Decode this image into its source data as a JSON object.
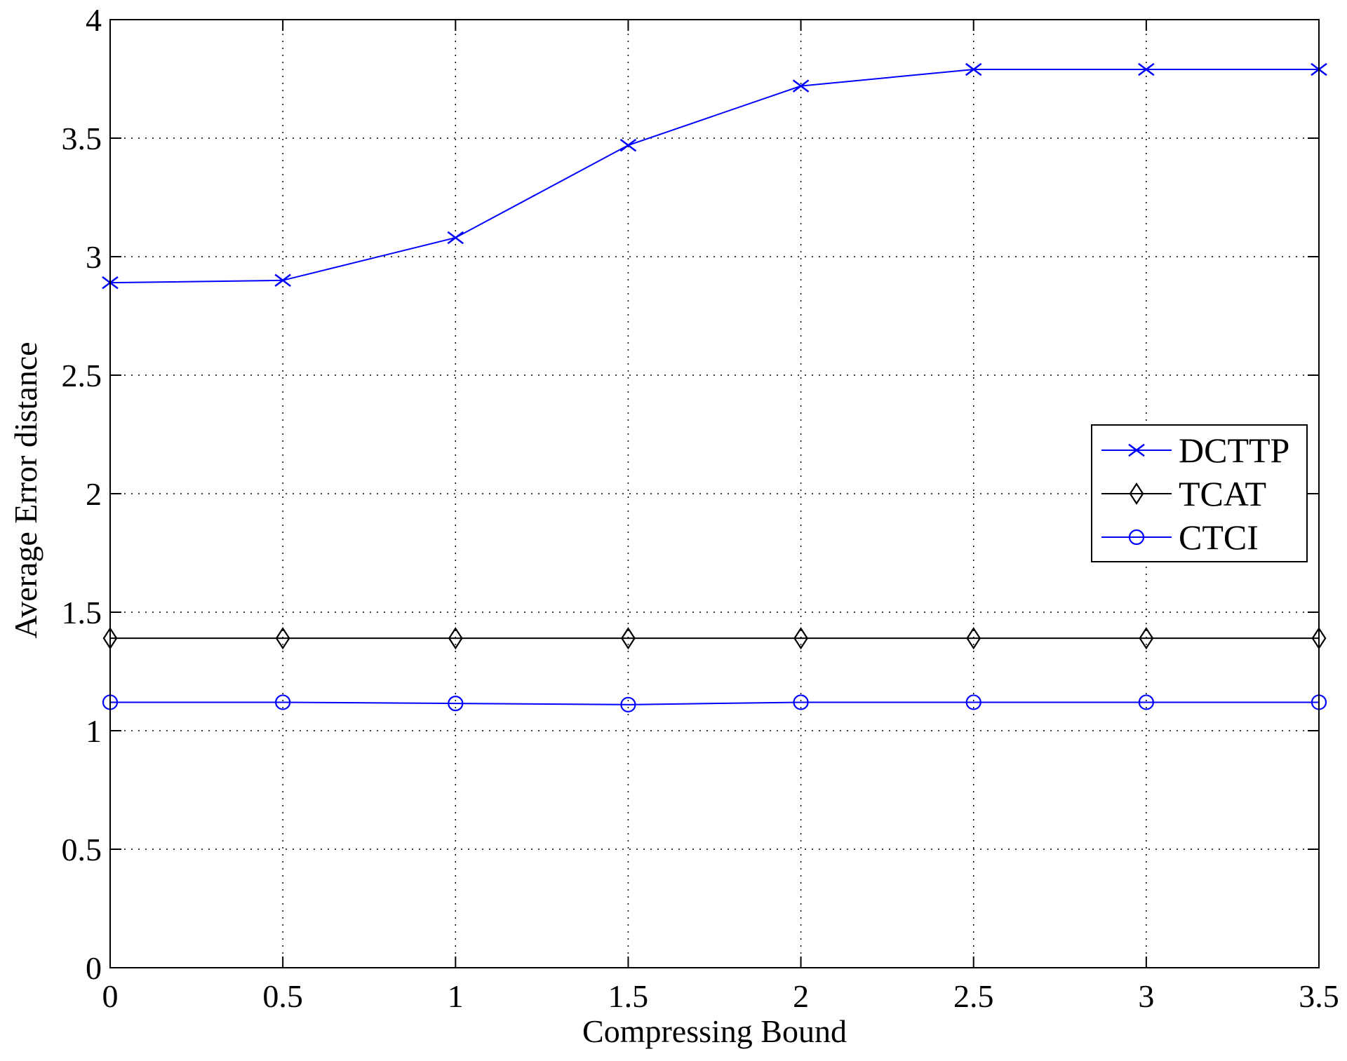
{
  "chart_data": {
    "type": "line",
    "xlabel": "Compressing Bound",
    "ylabel": "Average Error distance",
    "xlim": [
      0,
      3.5
    ],
    "ylim": [
      0,
      4
    ],
    "x": [
      0,
      0.5,
      1,
      1.5,
      2,
      2.5,
      3,
      3.5
    ],
    "xticks": [
      "0",
      "0.5",
      "1",
      "1.5",
      "2",
      "2.5",
      "3",
      "3.5"
    ],
    "yticks": [
      "0",
      "0.5",
      "1",
      "1.5",
      "2",
      "2.5",
      "3",
      "3.5",
      "4"
    ],
    "grid": true,
    "legend_position": "center-right",
    "series": [
      {
        "name": "DCTTP",
        "color": "#0000ff",
        "marker": "x",
        "values": [
          2.89,
          2.9,
          3.08,
          3.47,
          3.72,
          3.79,
          3.79,
          3.79
        ]
      },
      {
        "name": "TCAT",
        "color": "#000000",
        "marker": "diamond",
        "values": [
          1.39,
          1.39,
          1.39,
          1.39,
          1.39,
          1.39,
          1.39,
          1.39
        ]
      },
      {
        "name": "CTCI",
        "color": "#0000ff",
        "marker": "circle",
        "values": [
          1.12,
          1.12,
          1.115,
          1.11,
          1.12,
          1.12,
          1.12,
          1.12
        ]
      }
    ]
  }
}
